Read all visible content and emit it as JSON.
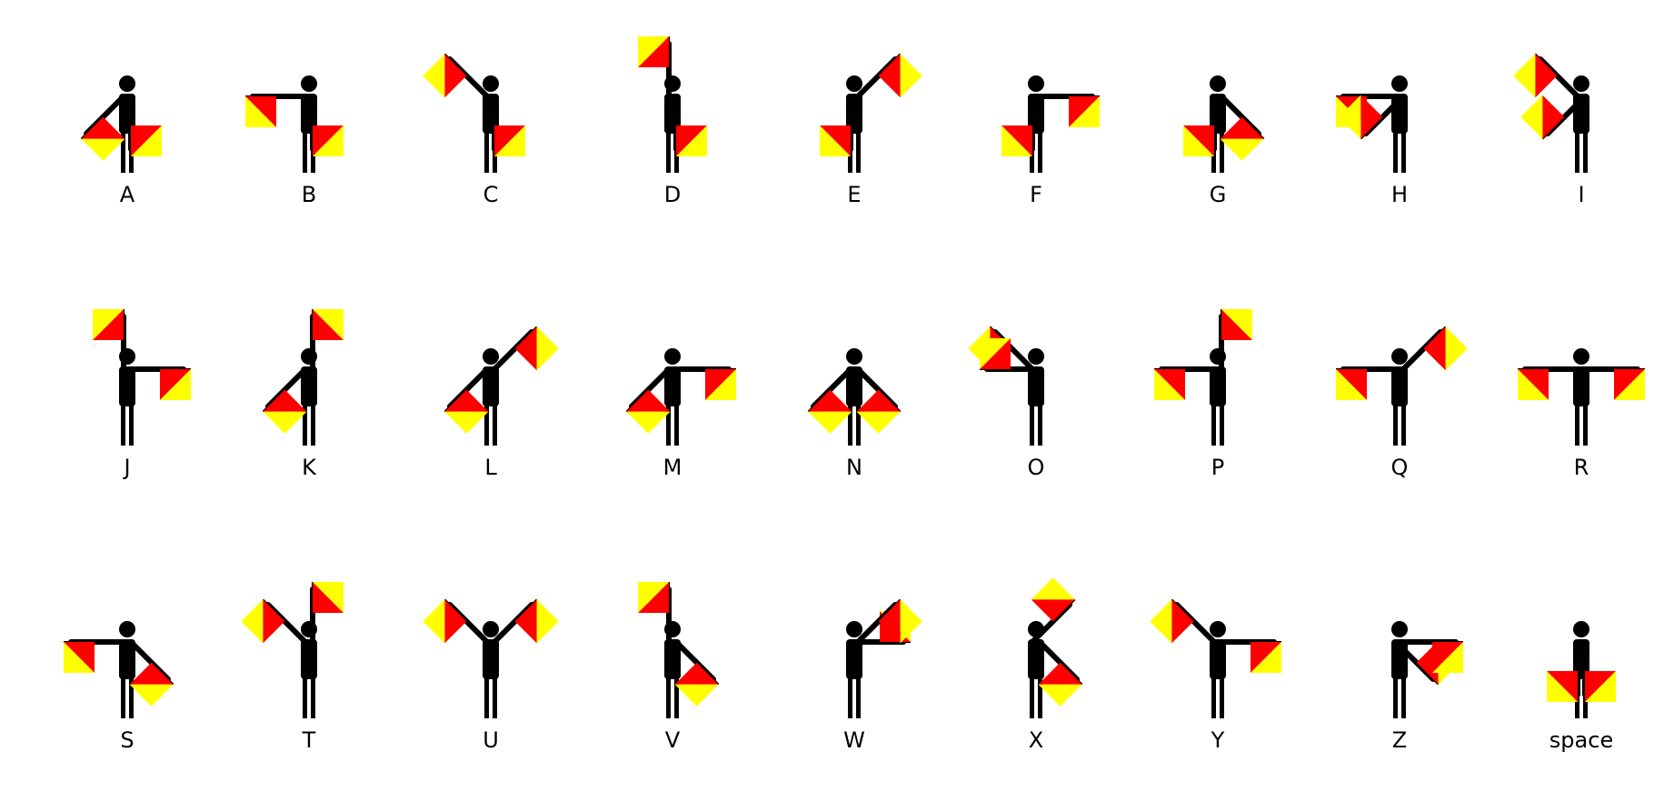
{
  "colors": {
    "flag_red": "#ff0000",
    "flag_yellow": "#ffff00",
    "figure": "#000000"
  },
  "signals": [
    {
      "label": "A",
      "left": 5,
      "right": 4
    },
    {
      "label": "B",
      "left": 6,
      "right": 4
    },
    {
      "label": "C",
      "left": 7,
      "right": 4
    },
    {
      "label": "D",
      "left": 0,
      "right": 4
    },
    {
      "label": "E",
      "left": 4,
      "right": 1
    },
    {
      "label": "F",
      "left": 4,
      "right": 2
    },
    {
      "label": "G",
      "left": 4,
      "right": 3
    },
    {
      "label": "H",
      "left": 6,
      "right": 5
    },
    {
      "label": "I",
      "left": 7,
      "right": 5
    },
    {
      "label": "J",
      "left": 0,
      "right": 2
    },
    {
      "label": "K",
      "left": 5,
      "right": 0
    },
    {
      "label": "L",
      "left": 5,
      "right": 1
    },
    {
      "label": "M",
      "left": 5,
      "right": 2
    },
    {
      "label": "N",
      "left": 5,
      "right": 3
    },
    {
      "label": "O",
      "left": 7,
      "right": 6
    },
    {
      "label": "P",
      "left": 6,
      "right": 0
    },
    {
      "label": "Q",
      "left": 6,
      "right": 1
    },
    {
      "label": "R",
      "left": 6,
      "right": 2
    },
    {
      "label": "S",
      "left": 6,
      "right": 3
    },
    {
      "label": "T",
      "left": 7,
      "right": 0
    },
    {
      "label": "U",
      "left": 7,
      "right": 1
    },
    {
      "label": "V",
      "left": 0,
      "right": 3
    },
    {
      "label": "W",
      "left": 2,
      "right": 1
    },
    {
      "label": "X",
      "left": 1,
      "right": 3
    },
    {
      "label": "Y",
      "left": 7,
      "right": 2
    },
    {
      "label": "Z",
      "left": 3,
      "right": 2
    },
    {
      "label": "space",
      "left": 4,
      "right": 4
    }
  ]
}
